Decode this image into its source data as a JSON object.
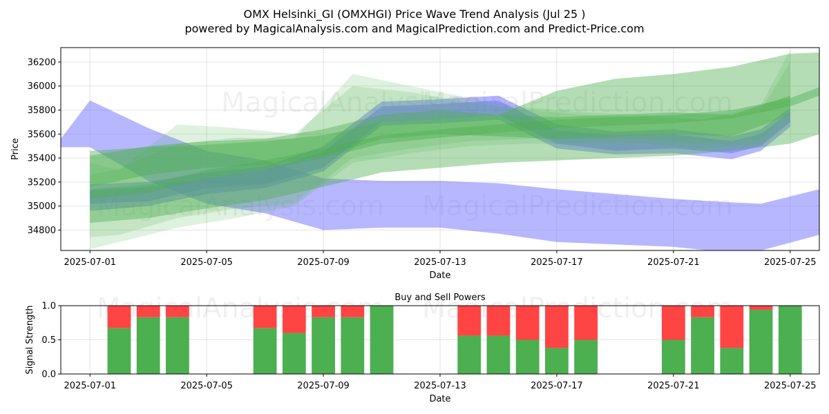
{
  "title_line1": "OMX Helsinki_GI (OMXHGI) Price Wave Trend Analysis (Jul 25 )",
  "title_line2": "powered by MagicalAnalysis.com and MagicalPrediction.com and Predict-Price.com",
  "watermarks": [
    "MagicalAnalysis.com",
    "MagicalPrediction.com"
  ],
  "colors": {
    "buy": "#4caf50",
    "sell": "#ff4444",
    "blue_band": "#7070ff",
    "green_band": "#4caf50"
  },
  "chart_data": [
    {
      "type": "area",
      "xlabel": "Date",
      "ylabel": "Price",
      "x_range": [
        "2025-06-30",
        "2025-07-26"
      ],
      "ylim": [
        34630,
        36320
      ],
      "x_ticks": [
        "2025-07-01",
        "2025-07-05",
        "2025-07-09",
        "2025-07-13",
        "2025-07-17",
        "2025-07-21",
        "2025-07-25"
      ],
      "y_ticks": [
        34800,
        35000,
        35200,
        35400,
        35600,
        35800,
        36000,
        36200
      ],
      "grid": true,
      "series": [
        {
          "color": "blue",
          "x": [
            "2025-06-30",
            "2025-07-01",
            "2025-07-03",
            "2025-07-05",
            "2025-07-07",
            "2025-07-09",
            "2025-07-11",
            "2025-07-13",
            "2025-07-15",
            "2025-07-17",
            "2025-07-19",
            "2025-07-21",
            "2025-07-23",
            "2025-07-24",
            "2025-07-26"
          ],
          "upper": [
            35560,
            35880,
            35650,
            35460,
            35380,
            35230,
            35210,
            35210,
            35190,
            35140,
            35100,
            35060,
            35030,
            35020,
            35140
          ],
          "lower": [
            35490,
            35490,
            35210,
            35020,
            34940,
            34800,
            34820,
            34820,
            34770,
            34700,
            34680,
            34660,
            34610,
            34630,
            34760
          ]
        },
        {
          "color": "blue",
          "x": [
            "2025-07-01",
            "2025-07-03",
            "2025-07-05",
            "2025-07-07",
            "2025-07-09",
            "2025-07-11",
            "2025-07-13",
            "2025-07-15",
            "2025-07-17",
            "2025-07-19",
            "2025-07-21",
            "2025-07-23",
            "2025-07-24",
            "2025-07-25"
          ],
          "upper": [
            35180,
            35200,
            35280,
            35330,
            35500,
            35870,
            35890,
            35920,
            35680,
            35620,
            35640,
            35580,
            35640,
            35820
          ],
          "lower": [
            35020,
            35040,
            35150,
            35180,
            35320,
            35700,
            35720,
            35760,
            35520,
            35460,
            35480,
            35440,
            35500,
            35700
          ]
        },
        {
          "color": "blue",
          "x": [
            "2025-07-01",
            "2025-07-03",
            "2025-07-05",
            "2025-07-07",
            "2025-07-09",
            "2025-07-11",
            "2025-07-13",
            "2025-07-15",
            "2025-07-17",
            "2025-07-19",
            "2025-07-21",
            "2025-07-23",
            "2025-07-24",
            "2025-07-25"
          ],
          "upper": [
            35130,
            35160,
            35230,
            35300,
            35450,
            35830,
            35850,
            35880,
            35630,
            35590,
            35600,
            35540,
            35600,
            35780
          ],
          "lower": [
            34960,
            35000,
            35100,
            35150,
            35290,
            35670,
            35690,
            35720,
            35480,
            35430,
            35440,
            35390,
            35460,
            35660
          ]
        },
        {
          "color": "green",
          "x": [
            "2025-07-01",
            "2025-07-03",
            "2025-07-05",
            "2025-07-07",
            "2025-07-09",
            "2025-07-11",
            "2025-07-13",
            "2025-07-15",
            "2025-07-17",
            "2025-07-19",
            "2025-07-21",
            "2025-07-23",
            "2025-07-25",
            "2025-07-26"
          ],
          "upper": [
            35460,
            35490,
            35510,
            35540,
            35590,
            35700,
            35720,
            35760,
            35960,
            36060,
            36100,
            36160,
            36270,
            36280
          ],
          "lower": [
            34860,
            34900,
            34980,
            35050,
            35160,
            35280,
            35320,
            35360,
            35380,
            35400,
            35420,
            35460,
            35520,
            35600
          ]
        },
        {
          "color": "green",
          "x": [
            "2025-07-01",
            "2025-07-03",
            "2025-07-05",
            "2025-07-07",
            "2025-07-09",
            "2025-07-11",
            "2025-07-13",
            "2025-07-15",
            "2025-07-17",
            "2025-07-19",
            "2025-07-21",
            "2025-07-23",
            "2025-07-25",
            "2025-07-26"
          ],
          "upper": [
            35140,
            35180,
            35300,
            35380,
            35480,
            35590,
            35640,
            35680,
            35720,
            35740,
            35760,
            35800,
            35900,
            35990
          ],
          "lower": [
            35060,
            35110,
            35230,
            35300,
            35400,
            35520,
            35570,
            35610,
            35650,
            35670,
            35690,
            35730,
            35830,
            35920
          ]
        },
        {
          "color": "green",
          "x": [
            "2025-07-01",
            "2025-07-03",
            "2025-07-05",
            "2025-07-07",
            "2025-07-09",
            "2025-07-11",
            "2025-07-13",
            "2025-07-15",
            "2025-07-17",
            "2025-07-19",
            "2025-07-21",
            "2025-07-23",
            "2025-07-25"
          ],
          "upper": [
            35420,
            35500,
            35540,
            35560,
            35640,
            35760,
            35800,
            35760,
            35740,
            35760,
            35780,
            35760,
            35920
          ],
          "lower": [
            35160,
            35260,
            35320,
            35340,
            35420,
            35560,
            35600,
            35580,
            35560,
            35580,
            35600,
            35580,
            35760
          ]
        },
        {
          "color": "green",
          "x": [
            "2025-07-01",
            "2025-07-02",
            "2025-07-04",
            "2025-07-06",
            "2025-07-08",
            "2025-07-10",
            "2025-07-12",
            "2025-07-14",
            "2025-07-16",
            "2025-07-18",
            "2025-07-20",
            "2025-07-22",
            "2025-07-24",
            "2025-07-25"
          ],
          "upper": [
            35260,
            35310,
            35520,
            35570,
            35560,
            36100,
            36000,
            35900,
            35820,
            35780,
            35760,
            35720,
            35840,
            36300
          ],
          "lower": [
            34740,
            34760,
            34900,
            34980,
            35020,
            35400,
            35480,
            35540,
            35560,
            35560,
            35560,
            35520,
            35560,
            35780
          ]
        },
        {
          "color": "green",
          "x": [
            "2025-07-01",
            "2025-07-02",
            "2025-07-04",
            "2025-07-06",
            "2025-07-08",
            "2025-07-10",
            "2025-07-12",
            "2025-07-14",
            "2025-07-16",
            "2025-07-18",
            "2025-07-20",
            "2025-07-22",
            "2025-07-24",
            "2025-07-25"
          ],
          "upper": [
            35360,
            35300,
            35680,
            35650,
            35600,
            36000,
            35950,
            35860,
            35800,
            35760,
            35740,
            35720,
            35800,
            36200
          ],
          "lower": [
            34640,
            34700,
            34820,
            34900,
            35000,
            35360,
            35440,
            35500,
            35520,
            35520,
            35520,
            35480,
            35520,
            35700
          ]
        }
      ]
    },
    {
      "type": "bar",
      "stacked": true,
      "title": "Buy and Sell Powers",
      "xlabel": "Date",
      "ylabel": "Signal Strength",
      "ylim": [
        0,
        1
      ],
      "x_range": [
        "2025-06-30",
        "2025-07-26"
      ],
      "x_ticks": [
        "2025-07-01",
        "2025-07-05",
        "2025-07-09",
        "2025-07-13",
        "2025-07-17",
        "2025-07-21",
        "2025-07-25"
      ],
      "y_ticks": [
        "0.0",
        "0.5",
        "1.0"
      ],
      "grid": true,
      "categories": [
        "2025-07-02",
        "2025-07-03",
        "2025-07-04",
        "2025-07-07",
        "2025-07-08",
        "2025-07-09",
        "2025-07-10",
        "2025-07-11",
        "2025-07-14",
        "2025-07-15",
        "2025-07-16",
        "2025-07-17",
        "2025-07-18",
        "2025-07-21",
        "2025-07-22",
        "2025-07-23",
        "2025-07-24",
        "2025-07-25"
      ],
      "series": [
        {
          "color": "green",
          "values": [
            0.67,
            0.83,
            0.83,
            0.67,
            0.6,
            0.83,
            0.83,
            1.0,
            0.56,
            0.56,
            0.5,
            0.38,
            0.5,
            0.5,
            0.83,
            0.38,
            0.94,
            1.0
          ]
        },
        {
          "color": "red",
          "values": [
            0.33,
            0.17,
            0.17,
            0.33,
            0.4,
            0.17,
            0.17,
            0.0,
            0.44,
            0.44,
            0.5,
            0.62,
            0.5,
            0.5,
            0.17,
            0.62,
            0.06,
            0.0
          ]
        }
      ]
    }
  ]
}
